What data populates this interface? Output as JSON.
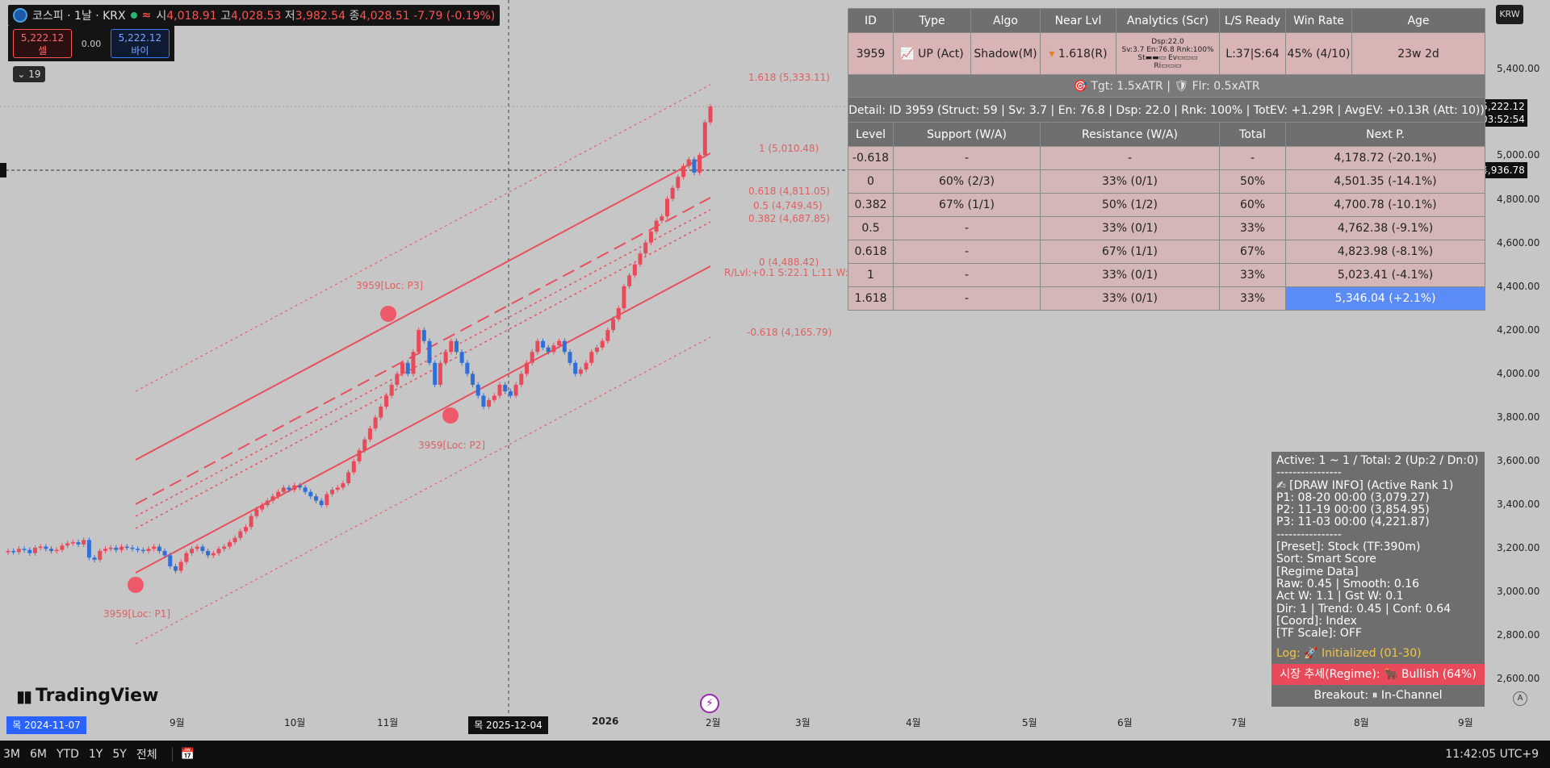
{
  "header": {
    "symbol": "코스피 · 1날 · KRX",
    "ohlc": {
      "o_label": "시",
      "o": "4,018.91",
      "h_label": "고",
      "h": "4,028.53",
      "l_label": "저",
      "l": "3,982.54",
      "c_label": "종",
      "c": "4,028.51",
      "change": "-7.79 (-0.19%)"
    },
    "sell_price": "5,222.12",
    "sell_label": "셀",
    "spread": "0.00",
    "buy_price": "5,222.12",
    "buy_label": "바이",
    "indicator_count": "19",
    "colors": {
      "up": "#e84a5a",
      "down": "#2f6fd6",
      "accent": "#2962ff"
    }
  },
  "price_scale": {
    "currency": "KRW",
    "ticks": [
      "5,400.00",
      "5,000.00",
      "4,800.00",
      "4,600.00",
      "4,400.00",
      "4,200.00",
      "4,000.00",
      "3,800.00",
      "3,600.00",
      "3,400.00",
      "3,200.00",
      "3,000.00",
      "2,800.00",
      "2,600.00"
    ],
    "last_price": "5,222.12",
    "countdown": "03:52:54",
    "crosshair_price": "4,936.78"
  },
  "time_axis": {
    "labels": [
      "9월",
      "10월",
      "11월",
      "2026",
      "2월",
      "3월",
      "4월",
      "5월",
      "6월",
      "7월",
      "8월",
      "9월"
    ],
    "left_date": "목 2024-11-07",
    "crosshair_date": "목 2025-12-04"
  },
  "table": {
    "headers": [
      "ID",
      "Type",
      "Algo",
      "Near Lvl",
      "Analytics (Scr)",
      "L/S Ready",
      "Win Rate",
      "Age"
    ],
    "row": {
      "id": "3959",
      "type_icon": "chart-up-icon",
      "type": "UP (Act)",
      "algo": "Shadow(M)",
      "near_lvl": "1.618(R)",
      "analytics_1": "Dsp:22.0",
      "analytics_2": "Sv:3.7 En:76.8 Rnk:100%",
      "analytics_3": "St▬▬▭ Ev▭▭▭",
      "analytics_4": "Ri▭▭▭",
      "ls_ready": "L:37|S:64",
      "win_rate": "45% (4/10)",
      "age": "23w 2d"
    },
    "targets": "Tgt: 1.5xATR |",
    "floor": "Flr: 0.5xATR",
    "detail": "Detail: ID 3959 (Struct: 59 | Sv: 3.7 | En: 76.8 | Dsp: 22.0 | Rnk: 100% | TotEV: +1.29R | AvgEV: +0.13R (Att: 10))",
    "level_headers": [
      "Level",
      "Support (W/A)",
      "Resistance (W/A)",
      "Total",
      "Next P."
    ],
    "levels": [
      {
        "level": "-0.618",
        "support": "-",
        "resistance": "-",
        "total": "-",
        "next": "4,178.72 (-20.1%)"
      },
      {
        "level": "0",
        "support": "60% (2/3)",
        "resistance": "33% (0/1)",
        "total": "50%",
        "next": "4,501.35 (-14.1%)"
      },
      {
        "level": "0.382",
        "support": "67% (1/1)",
        "resistance": "50% (1/2)",
        "total": "60%",
        "next": "4,700.78 (-10.1%)"
      },
      {
        "level": "0.5",
        "support": "-",
        "resistance": "33% (0/1)",
        "total": "33%",
        "next": "4,762.38 (-9.1%)"
      },
      {
        "level": "0.618",
        "support": "-",
        "resistance": "67% (1/1)",
        "total": "67%",
        "next": "4,823.98 (-8.1%)"
      },
      {
        "level": "1",
        "support": "-",
        "resistance": "33% (0/1)",
        "total": "33%",
        "next": "5,023.41 (-4.1%)"
      },
      {
        "level": "1.618",
        "support": "-",
        "resistance": "33% (0/1)",
        "total": "33%",
        "next": "5,346.04 (+2.1%)"
      }
    ]
  },
  "fib_labels": [
    {
      "text": "1.618 (5,333.11)"
    },
    {
      "text": "1 (5,010.48)"
    },
    {
      "text": "0.618 (4,811.05)"
    },
    {
      "text": "0.5 (4,749.45)"
    },
    {
      "text": "0.382 (4,687.85)"
    },
    {
      "text": "0 (4,488.42)"
    },
    {
      "text": "R/Lvl:+0.1 S:22.1 L:11 W:5"
    },
    {
      "text": "-0.618 (4,165.79)"
    }
  ],
  "pivots": {
    "p1": "3959[Loc: P1]",
    "p2": "3959[Loc: P2]",
    "p3": "3959[Loc: P3]"
  },
  "panel": {
    "lines": [
      "Active: 1 ~ 1 / Total: 2 (Up:2 / Dn:0)",
      "----------------",
      "✍ [DRAW INFO] (Active Rank 1)",
      "P1: 08-20 00:00 (3,079.27)",
      "P2: 11-19 00:00 (3,854.95)",
      "P3: 11-03 00:00 (4,221.87)",
      "----------------",
      "[Preset]: Stock (TF:390m)",
      "Sort: Smart Score",
      "[Regime Data]",
      "Raw: 0.45 | Smooth: 0.16",
      "Act W: 1.1 | Gst W: 0.1",
      "Dir: 1 | Trend: 0.45 | Conf: 0.64",
      "[Coord]: Index",
      "[TF Scale]: OFF"
    ],
    "log": "Log: 🚀 Initialized (01-30)",
    "regime": "시장 추세(Regime): 🐂 Bullish (64%)",
    "breakout": "Breakout: ⏸ In-Channel"
  },
  "brand": "TradingView",
  "bottom": {
    "ranges": [
      "3M",
      "6M",
      "YTD",
      "1Y",
      "5Y",
      "전체"
    ],
    "clock": "11:42:05 UTC+9"
  },
  "chart_data": {
    "type": "candlestick",
    "series_up_color": "#e84a5a",
    "series_down_color": "#2f6fd6",
    "closes": [
      3190,
      3185,
      3200,
      3195,
      3180,
      3205,
      3210,
      3200,
      3190,
      3195,
      3215,
      3225,
      3230,
      3220,
      3240,
      3160,
      3150,
      3190,
      3200,
      3205,
      3195,
      3210,
      3205,
      3200,
      3195,
      3190,
      3200,
      3210,
      3190,
      3170,
      3120,
      3100,
      3140,
      3180,
      3200,
      3210,
      3190,
      3170,
      3180,
      3200,
      3210,
      3230,
      3250,
      3280,
      3300,
      3350,
      3380,
      3400,
      3420,
      3440,
      3460,
      3480,
      3470,
      3490,
      3480,
      3460,
      3440,
      3420,
      3400,
      3450,
      3470,
      3480,
      3500,
      3550,
      3600,
      3650,
      3700,
      3750,
      3800,
      3850,
      3900,
      3950,
      4000,
      4050,
      4000,
      4100,
      4200,
      4150,
      4050,
      3950,
      4050,
      4100,
      4150,
      4100,
      4050,
      4000,
      3950,
      3900,
      3850,
      3880,
      3900,
      3950,
      3920,
      3900,
      3950,
      4000,
      4050,
      4100,
      4150,
      4120,
      4100,
      4130,
      4150,
      4100,
      4050,
      4000,
      4020,
      4050,
      4100,
      4120,
      4150,
      4200,
      4250,
      4300,
      4400,
      4450,
      4500,
      4550,
      4600,
      4650,
      4700,
      4720,
      4800,
      4850,
      4900,
      4950,
      4980,
      4920,
      5000,
      5150,
      5222
    ],
    "ylim": [
      2500,
      5500
    ]
  }
}
